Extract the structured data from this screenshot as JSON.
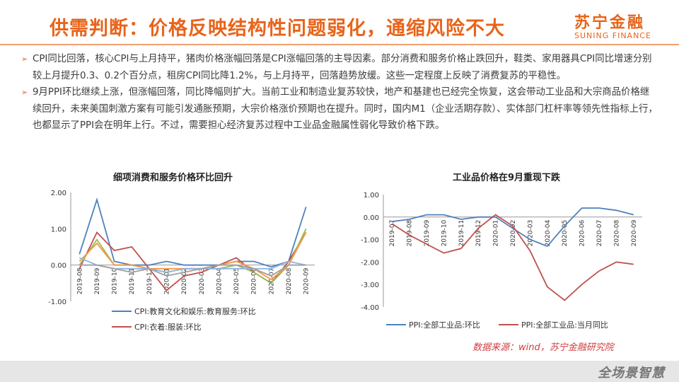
{
  "header": {
    "title": "供需判断：价格反映结构性问题弱化，通缩风险不大",
    "logo_cn": "苏宁金融",
    "logo_en": "SUNING FINANCE"
  },
  "bullets": [
    "CPI同比回落，核心CPI与上月持平，猪肉价格涨幅回落是CPI涨幅回落的主导因素。部分消费和服务价格止跌回升，鞋类、家用器具CPI同比增速分别较上月提升0.3、0.2个百分点，租房CPI同比降1.2%，与上月持平，回落趋势放缓。这些一定程度上反映了消费复苏的平稳性。",
    "9月PPI环比继续上涨，但涨幅回落，同比降幅则扩大。当前工业和制造业复苏较快，地产和基建也已经完全恢复，这会带动工业品和大宗商品价格继续回升，未来美国刺激方案有可能引发通胀预期，大宗价格涨价预期也在提升。同时，国内M1（企业活期存款）、实体部门杠杆率等领先性指标上行，也都显示了PPI会在明年上行。不过，需要担心经济复苏过程中工业品金融属性弱化导致价格下跌。"
  ],
  "source_note": "数据来源：wind，苏宁金融研究院",
  "footer": {
    "slogan": "全场景智慧"
  },
  "colors": {
    "accent": "#e8641b",
    "series_blue": "#4f81bd",
    "series_red": "#c0504d",
    "series_green": "#9bbb59",
    "series_orange": "#f79646",
    "series_gray": "#a0a0a0",
    "series_lblue": "#8fb4e3"
  },
  "chart_data": [
    {
      "type": "line",
      "title": "细项消费和服务价格环比回升",
      "x": [
        "2019-08",
        "2019-09",
        "2019-10",
        "2019-11",
        "2019-12",
        "2020-01",
        "2020-02",
        "2020-03",
        "2020-04",
        "2020-05",
        "2020-06",
        "2020-07",
        "2020-08",
        "2020-09"
      ],
      "ylim": [
        -1.0,
        2.0
      ],
      "yticks": [
        "2.00",
        "1.00",
        "0.00",
        "-1.00"
      ],
      "legend_position": "bottom",
      "series": [
        {
          "name": "CPI:教育文化和娱乐:教育服务:环比",
          "color": "#4f81bd",
          "values": [
            0.3,
            1.8,
            0.1,
            0.0,
            0.0,
            0.1,
            0.0,
            0.0,
            0.0,
            0.1,
            0.1,
            -0.05,
            0.1,
            1.6
          ],
          "legend": true
        },
        {
          "name": "CPI:衣着:服装:环比",
          "color": "#c0504d",
          "values": [
            -0.1,
            0.9,
            0.4,
            0.5,
            -0.1,
            -0.7,
            -0.3,
            -0.2,
            0.0,
            0.2,
            -0.2,
            -0.5,
            0.1,
            0.9
          ],
          "legend": true
        },
        {
          "color": "#9bbb59",
          "values": [
            0.0,
            0.7,
            0.0,
            0.0,
            -0.1,
            -0.2,
            -0.1,
            -0.1,
            -0.1,
            0.0,
            -0.2,
            -0.5,
            0.0,
            1.0
          ],
          "legend": false
        },
        {
          "color": "#f79646",
          "values": [
            0.1,
            0.6,
            0.0,
            0.0,
            -0.1,
            -0.1,
            -0.1,
            -0.1,
            0.0,
            0.1,
            -0.1,
            -0.4,
            0.0,
            0.9
          ],
          "legend": false
        },
        {
          "color": "#8fb4e3",
          "values": [
            0.2,
            0.0,
            -0.1,
            -0.1,
            -0.1,
            -0.2,
            -0.1,
            -0.1,
            -0.1,
            -0.1,
            -0.1,
            -0.1,
            0.1,
            0.0
          ],
          "legend": false
        },
        {
          "color": "#a0a0a0",
          "values": [
            0.0,
            0.0,
            -0.1,
            -0.2,
            -0.1,
            -0.3,
            -0.2,
            -0.1,
            0.0,
            0.0,
            -0.1,
            -0.3,
            0.0,
            0.0
          ],
          "legend": false
        }
      ]
    },
    {
      "type": "line",
      "title": "工业品价格在9月重现下跌",
      "x": [
        "2019-07",
        "2019-08",
        "2019-09",
        "2019-10",
        "2019-11",
        "2019-12",
        "2020-01",
        "2020-02",
        "2020-03",
        "2020-04",
        "2020-05",
        "2020-06",
        "2020-07",
        "2020-08",
        "2020-09"
      ],
      "ylim": [
        -4.0,
        1.0
      ],
      "yticks": [
        "1.00",
        "0.00",
        "-1.00",
        "-2.00",
        "-3.00",
        "-4.00"
      ],
      "legend_position": "bottom",
      "series": [
        {
          "name": "PPI:全部工业品:环比",
          "color": "#4f81bd",
          "values": [
            -0.2,
            -0.1,
            0.1,
            0.1,
            -0.1,
            0.0,
            0.0,
            -0.5,
            -1.0,
            -1.3,
            -0.4,
            0.4,
            0.4,
            0.3,
            0.1
          ]
        },
        {
          "name": "PPI:全部工业品:当月同比",
          "color": "#c0504d",
          "values": [
            -0.3,
            -0.8,
            -1.2,
            -1.6,
            -1.4,
            -0.5,
            0.1,
            -0.4,
            -1.5,
            -3.1,
            -3.7,
            -3.0,
            -2.4,
            -2.0,
            -2.1
          ]
        }
      ]
    }
  ]
}
